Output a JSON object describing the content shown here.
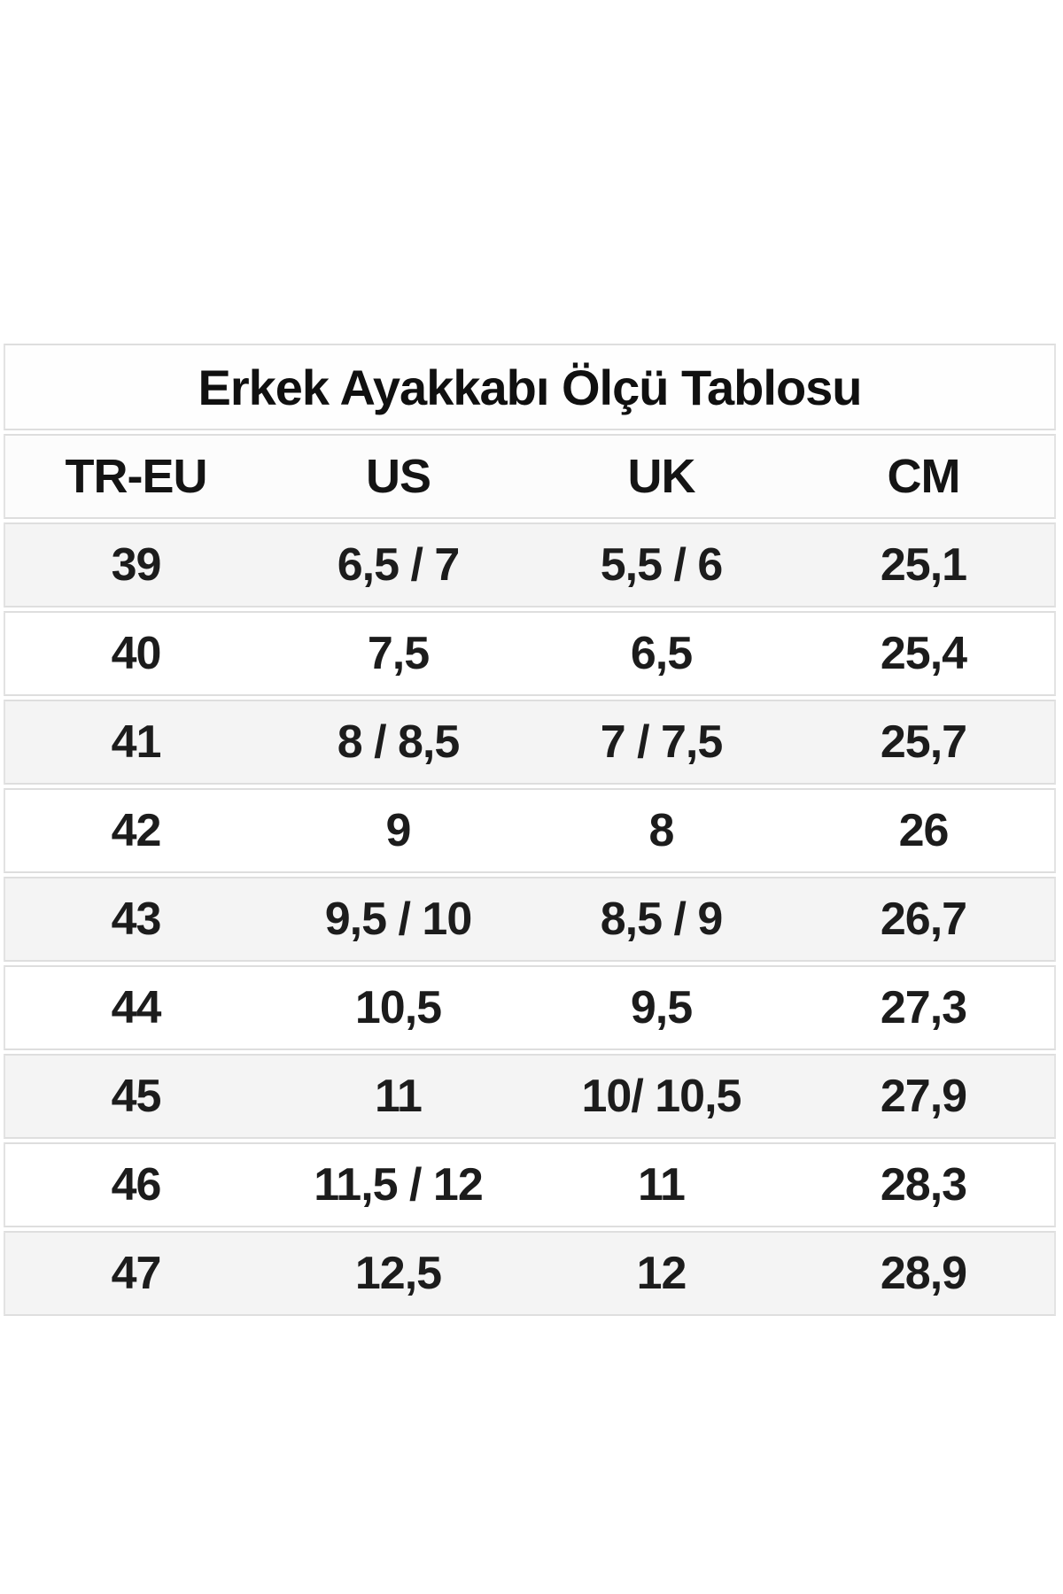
{
  "page": {
    "background_color": "#ffffff"
  },
  "table": {
    "title": "Erkek Ayakkabı Ölçü Tablosu",
    "columns": [
      "TR-EU",
      "US",
      "UK",
      "CM"
    ],
    "rows": [
      [
        "39",
        "6,5 / 7",
        "5,5 / 6",
        "25,1"
      ],
      [
        "40",
        "7,5",
        "6,5",
        "25,4"
      ],
      [
        "41",
        "8 / 8,5",
        "7 / 7,5",
        "25,7"
      ],
      [
        "42",
        "9",
        "8",
        "26"
      ],
      [
        "43",
        "9,5 / 10",
        "8,5 / 9",
        "26,7"
      ],
      [
        "44",
        "10,5",
        "9,5",
        "27,3"
      ],
      [
        "45",
        "11",
        "10/ 10,5",
        "27,9"
      ],
      [
        "46",
        "11,5 / 12",
        "11",
        "28,3"
      ],
      [
        "47",
        "12,5",
        "12",
        "28,9"
      ]
    ],
    "colors": {
      "stripe_row": "#f4f4f4",
      "plain_row": "#ffffff",
      "border": "#dedede",
      "text": "#1c1c1c"
    }
  }
}
